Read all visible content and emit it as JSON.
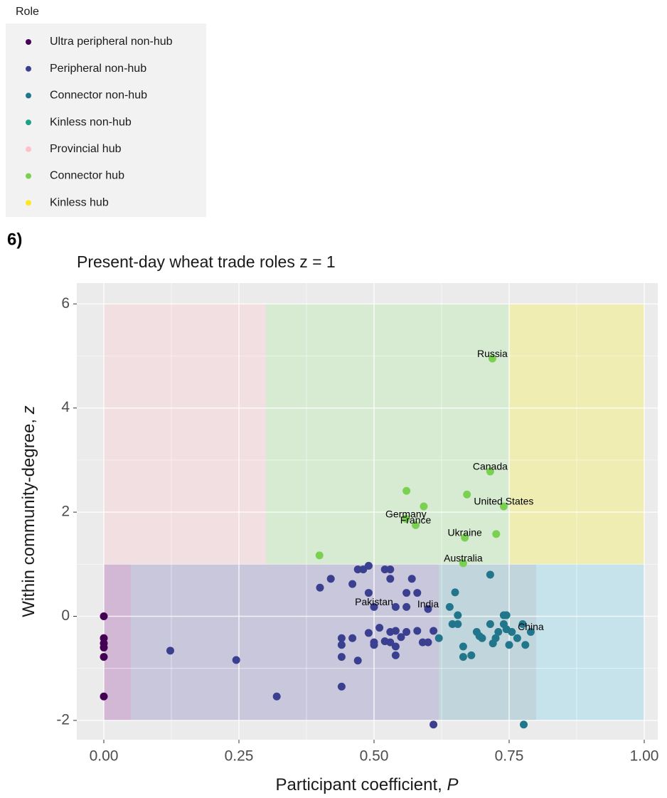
{
  "chart_data": {
    "type": "scatter",
    "panel_label": "6)",
    "title": "Present-day wheat trade roles z = 1",
    "xlabel": {
      "text": "Participant coefficient, ",
      "var": "P"
    },
    "ylabel": {
      "text": "Within community-degree, ",
      "var": "z"
    },
    "legend_title": "Role",
    "legend": "top-left",
    "grid": true,
    "xlim": [
      -0.05,
      1.025
    ],
    "ylim": [
      -2.37,
      6.4
    ],
    "xticks": [
      {
        "value": 0,
        "label": "0.00"
      },
      {
        "value": 0.25,
        "label": "0.25"
      },
      {
        "value": 0.5,
        "label": "0.50"
      },
      {
        "value": 0.75,
        "label": "0.75"
      },
      {
        "value": 1,
        "label": "1.00"
      }
    ],
    "yticks": [
      -2,
      0,
      2,
      4,
      6
    ],
    "xminorticks": [
      0.125,
      0.375,
      0.625,
      0.875
    ],
    "yminorticks": [
      -1,
      1,
      3,
      5
    ],
    "regions": [
      {
        "x": [
          0,
          0.05
        ],
        "y": [
          -2,
          1
        ],
        "color": "#d3b8d6"
      },
      {
        "x": [
          0.05,
          0.62
        ],
        "y": [
          -2,
          1
        ],
        "color": "#c9c7dc"
      },
      {
        "x": [
          0.62,
          0.8
        ],
        "y": [
          -2,
          1
        ],
        "color": "#c0d5dc"
      },
      {
        "x": [
          0.8,
          1
        ],
        "y": [
          -2,
          1
        ],
        "color": "#c6e3eb"
      },
      {
        "x": [
          0,
          0.3
        ],
        "y": [
          1,
          6
        ],
        "color": "#f1dfe2"
      },
      {
        "x": [
          0.3,
          0.75
        ],
        "y": [
          1,
          6
        ],
        "color": "#d7ebd3"
      },
      {
        "x": [
          0.75,
          1
        ],
        "y": [
          1,
          6
        ],
        "color": "#f0edb3"
      }
    ],
    "series": [
      {
        "name": "Ultra peripheral non-hub",
        "color": "#440154",
        "x": [
          0,
          0,
          0,
          0,
          0,
          0
        ],
        "values": [
          0,
          -0.42,
          -0.52,
          -0.6,
          -0.78,
          -1.54
        ],
        "point_labels": [
          null,
          null,
          null,
          null,
          null,
          null
        ]
      },
      {
        "name": "Peripheral non-hub",
        "color": "#3b3f8f",
        "x": [
          0.123,
          0.245,
          0.32,
          0.4,
          0.42,
          0.44,
          0.44,
          0.44,
          0.44,
          0.46,
          0.46,
          0.47,
          0.47,
          0.48,
          0.49,
          0.49,
          0.49,
          0.5,
          0.5,
          0.5,
          0.51,
          0.52,
          0.52,
          0.53,
          0.53,
          0.53,
          0.53,
          0.54,
          0.54,
          0.54,
          0.54,
          0.55,
          0.56,
          0.56,
          0.56,
          0.57,
          0.58,
          0.58,
          0.59,
          0.6,
          0.6,
          0.61,
          0.61
        ],
        "values": [
          -0.66,
          -0.84,
          -1.54,
          0.55,
          0.72,
          -0.42,
          -0.55,
          -0.78,
          -1.35,
          0.62,
          -0.42,
          0.9,
          -0.85,
          0.9,
          0.97,
          -0.32,
          0.45,
          0.18,
          -0.5,
          -0.55,
          -0.22,
          0.9,
          -0.48,
          0.9,
          -0.3,
          -0.5,
          0.72,
          -0.28,
          -0.58,
          0.18,
          -0.75,
          -0.4,
          0.45,
          -0.3,
          0.18,
          0.72,
          0.45,
          -0.28,
          -0.5,
          0.14,
          -0.5,
          -0.28,
          -2.08
        ],
        "point_labels": [
          null,
          null,
          null,
          null,
          null,
          null,
          null,
          null,
          null,
          null,
          null,
          null,
          null,
          null,
          null,
          null,
          null,
          "Pakistan",
          null,
          null,
          null,
          null,
          null,
          null,
          null,
          null,
          null,
          null,
          null,
          null,
          null,
          null,
          null,
          null,
          null,
          null,
          null,
          null,
          null,
          "India",
          null,
          null,
          null
        ]
      },
      {
        "name": "Connector non-hub",
        "color": "#21768c",
        "x": [
          0.62,
          0.64,
          0.645,
          0.65,
          0.655,
          0.655,
          0.665,
          0.665,
          0.68,
          0.69,
          0.695,
          0.7,
          0.715,
          0.715,
          0.72,
          0.725,
          0.73,
          0.74,
          0.74,
          0.745,
          0.745,
          0.75,
          0.755,
          0.765,
          0.775,
          0.78,
          0.777,
          0.79
        ],
        "values": [
          -0.42,
          0.18,
          -0.15,
          0.46,
          0.02,
          -0.15,
          -0.58,
          -0.78,
          -0.75,
          -0.3,
          -0.38,
          -0.42,
          0.8,
          -0.15,
          -0.52,
          -0.42,
          -0.3,
          0.02,
          -0.15,
          -0.25,
          0.02,
          -0.55,
          -0.3,
          -0.42,
          -0.15,
          -0.55,
          -2.08,
          -0.3
        ],
        "point_labels": [
          null,
          null,
          null,
          null,
          null,
          null,
          null,
          null,
          null,
          null,
          null,
          null,
          null,
          null,
          null,
          null,
          null,
          null,
          null,
          null,
          null,
          null,
          null,
          null,
          null,
          null,
          null,
          "China"
        ]
      },
      {
        "name": "Kinless non-hub",
        "color": "#1fa187",
        "x": [],
        "values": [],
        "point_labels": []
      },
      {
        "name": "Provincial hub",
        "color": "#ffc0cb",
        "x": [],
        "values": [],
        "point_labels": []
      },
      {
        "name": "Connector hub",
        "color": "#7ad151",
        "x": [
          0.719,
          0.715,
          0.74,
          0.559,
          0.577,
          0.668,
          0.665,
          0.56,
          0.592,
          0.672,
          0.726,
          0.399
        ],
        "values": [
          4.95,
          2.78,
          2.11,
          1.87,
          1.75,
          1.51,
          1.02,
          2.41,
          2.11,
          2.34,
          1.58,
          1.17
        ],
        "point_labels": [
          "Russia",
          "Canada",
          "United States",
          "Germany",
          "France",
          "Ukraine",
          "Australia",
          null,
          null,
          null,
          null,
          null
        ]
      },
      {
        "name": "Kinless hub",
        "color": "#fde725",
        "x": [],
        "values": [],
        "point_labels": []
      }
    ]
  }
}
